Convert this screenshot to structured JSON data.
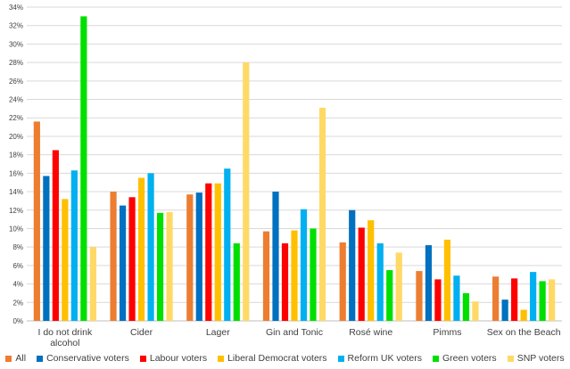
{
  "chart_data": {
    "type": "bar",
    "categories": [
      [
        "I do not drink",
        "alcohol"
      ],
      [
        "Cider"
      ],
      [
        "Lager"
      ],
      [
        "Gin and Tonic"
      ],
      [
        "Rosé wine"
      ],
      [
        "Pimms"
      ],
      [
        "Sex on the Beach"
      ]
    ],
    "ylim": [
      0,
      34
    ],
    "yticks": [
      0,
      2,
      4,
      6,
      8,
      10,
      12,
      14,
      16,
      18,
      20,
      22,
      24,
      26,
      28,
      30,
      32,
      34
    ],
    "ytick_suffix": "%",
    "grid": true,
    "legend_position": "bottom",
    "series": [
      {
        "name": "All",
        "color": "#ED7D31",
        "values": [
          21.6,
          14.0,
          13.7,
          9.7,
          8.5,
          5.4,
          4.8
        ]
      },
      {
        "name": "Conservative voters",
        "color": "#0070C0",
        "values": [
          15.7,
          12.5,
          13.9,
          14.0,
          12.0,
          8.2,
          2.3
        ]
      },
      {
        "name": "Labour voters",
        "color": "#FF0000",
        "values": [
          18.5,
          13.4,
          14.9,
          8.4,
          10.1,
          4.5,
          4.6
        ]
      },
      {
        "name": "Liberal Democrat voters",
        "color": "#FFC000",
        "values": [
          13.2,
          15.5,
          14.9,
          9.8,
          10.9,
          8.8,
          1.2
        ]
      },
      {
        "name": "Reform UK voters",
        "color": "#00B0F0",
        "values": [
          16.3,
          16.0,
          16.5,
          12.1,
          8.4,
          4.9,
          5.3
        ]
      },
      {
        "name": "Green voters",
        "color": "#00E000",
        "values": [
          33.0,
          11.7,
          8.4,
          10.0,
          5.5,
          3.0,
          4.3
        ]
      },
      {
        "name": "SNP voters",
        "color": "#FFD966",
        "values": [
          8.0,
          11.8,
          28.0,
          23.1,
          7.4,
          2.1,
          4.5
        ]
      }
    ]
  }
}
